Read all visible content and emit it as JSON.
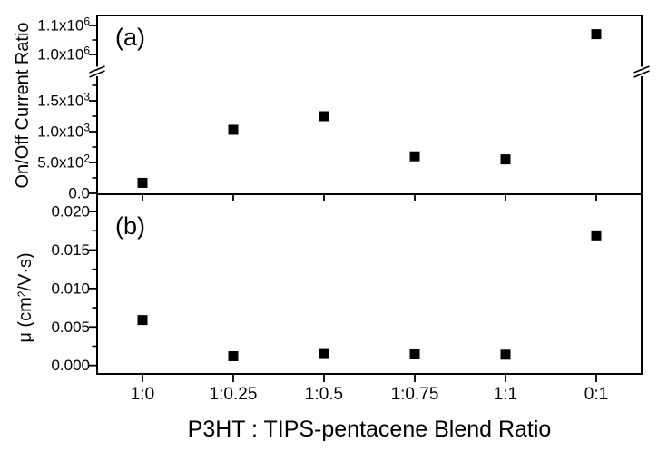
{
  "figure": {
    "background_color": "#ffffff",
    "ink_color": "#000000",
    "marker_color": "#000000",
    "xlabel": "P3HT : TIPS-pentacene Blend Ratio",
    "categories": [
      "1:0",
      "1:0.25",
      "1:0.5",
      "1:0.75",
      "1:1",
      "0:1"
    ]
  },
  "chart_data": [
    {
      "type": "scatter",
      "panel_label": "(a)",
      "ylabel": "On/Off Current Ratio",
      "marker": "filled-square",
      "legend": "none",
      "grid": false,
      "categories": [
        "1:0",
        "1:0.25",
        "1:0.5",
        "1:0.75",
        "1:1",
        "0:1"
      ],
      "values": [
        170,
        1030,
        1250,
        600,
        550,
        1070000
      ],
      "y_axis": {
        "broken": true,
        "lower_segment": {
          "range": [
            0,
            1875
          ],
          "major_ticks": [
            0,
            500,
            1000,
            1500
          ],
          "major_tick_labels": [
            "0.0",
            "5.0x10^{2}",
            "1.0x10^{3}",
            "1.5x10^{3}"
          ],
          "minor_ticks": [
            250,
            750,
            1250,
            1750
          ]
        },
        "upper_segment": {
          "range": [
            995000,
            1135000
          ],
          "major_ticks": [
            1000000,
            1100000
          ],
          "major_tick_labels": [
            "1.0x10^{6}",
            "1.1x10^{6}"
          ],
          "minor_ticks": [
            1050000
          ]
        }
      }
    },
    {
      "type": "scatter",
      "panel_label": "(b)",
      "ylabel": "μ (cm^{2}/V·s)",
      "marker": "filled-square",
      "legend": "none",
      "grid": false,
      "categories": [
        "1:0",
        "1:0.25",
        "1:0.5",
        "1:0.75",
        "1:1",
        "0:1"
      ],
      "values": [
        0.0059,
        0.0012,
        0.0016,
        0.0015,
        0.0014,
        0.0169
      ],
      "y_axis": {
        "broken": false,
        "range": [
          -0.0011,
          0.0222
        ],
        "major_ticks": [
          0,
          0.005,
          0.01,
          0.015,
          0.02
        ],
        "major_tick_labels": [
          "0.000",
          "0.005",
          "0.010",
          "0.015",
          "0.020"
        ],
        "minor_ticks": [
          0.0025,
          0.0075,
          0.0125,
          0.0175
        ]
      }
    }
  ]
}
